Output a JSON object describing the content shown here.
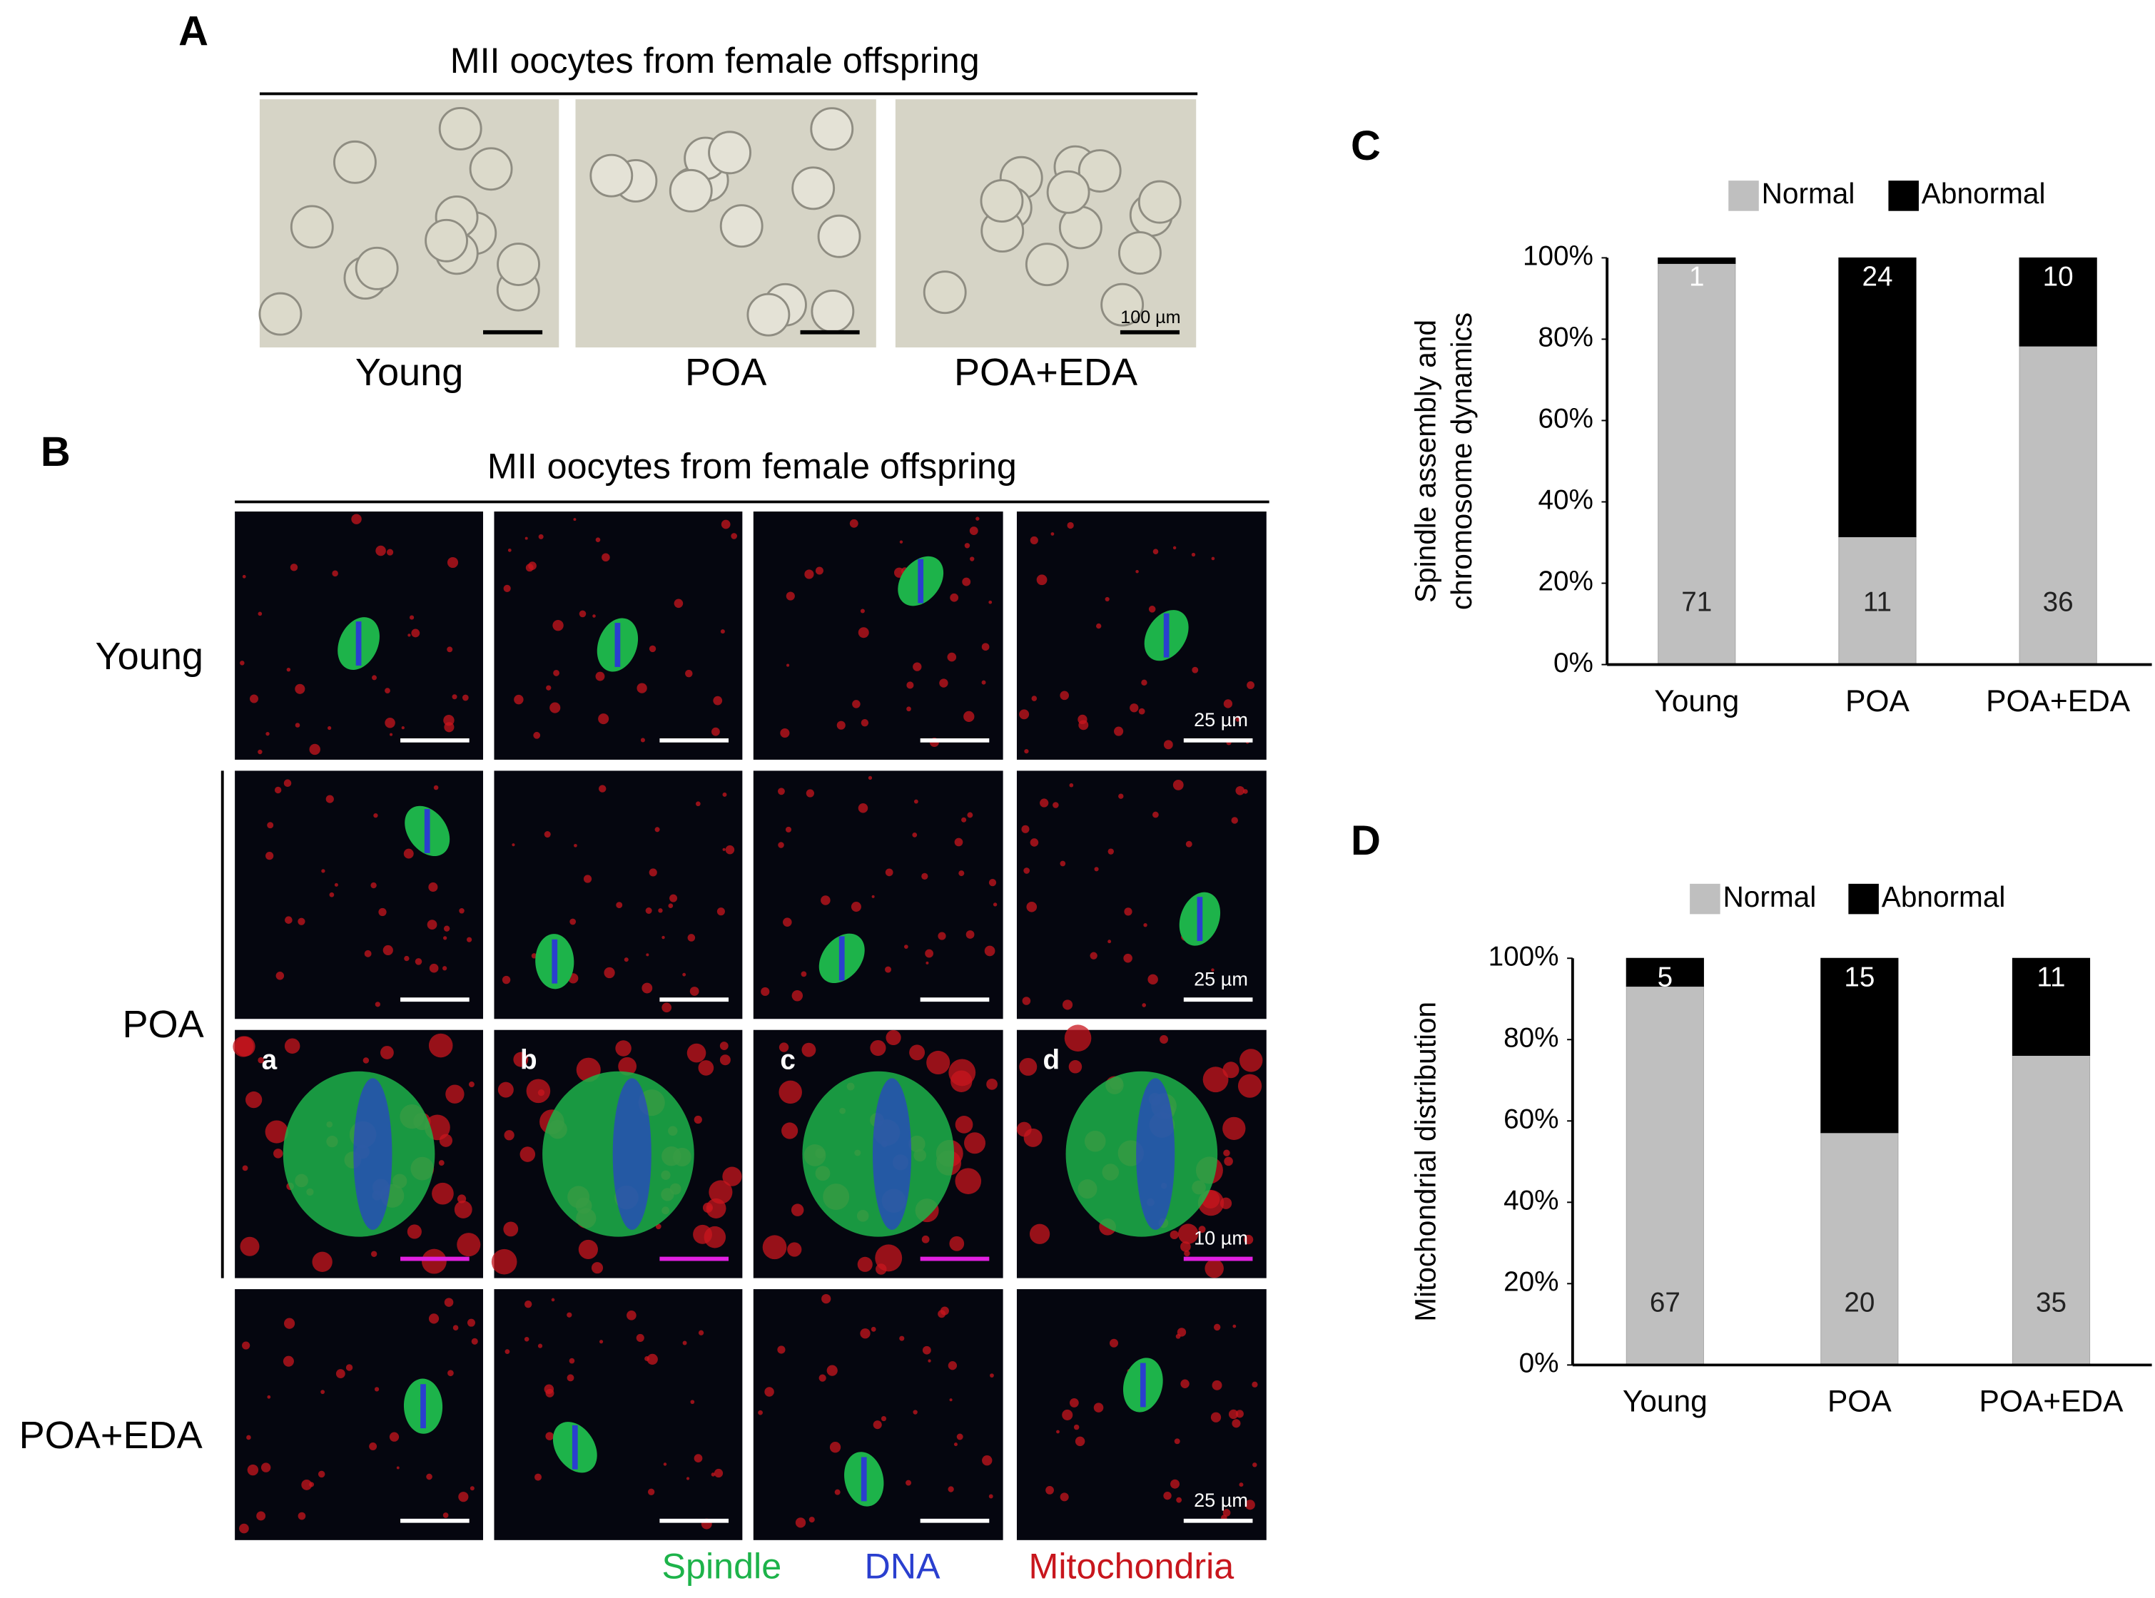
{
  "panel_a": {
    "label": "A",
    "title": "MII oocytes from female offspring",
    "groups": [
      "Young",
      "POA",
      "POA+EDA"
    ],
    "scale_bar": "100 µm"
  },
  "panel_b": {
    "label": "B",
    "title": "MII oocytes from female offspring",
    "rows": [
      "Young",
      "POA",
      "POA+EDA"
    ],
    "insets": [
      "a",
      "b",
      "c",
      "d"
    ],
    "scale_bars": [
      "25 µm",
      "25 µm",
      "10 µm",
      "25 µm"
    ],
    "stains": [
      {
        "name": "Spindle",
        "color": "#1db34a"
      },
      {
        "name": "DNA",
        "color": "#2a3fcf"
      },
      {
        "name": "Mitochondria",
        "color": "#c8161d"
      }
    ]
  },
  "chart_data": [
    {
      "type": "bar",
      "stacked": true,
      "label": "C",
      "ylabel": [
        "Spindle assembly and",
        "chromosome dynamics"
      ],
      "categories": [
        "Young",
        "POA",
        "POA+EDA"
      ],
      "series": [
        {
          "name": "Normal",
          "color": "#bfbfbf",
          "values": [
            98.6,
            31.4,
            78.3
          ],
          "counts": [
            71,
            11,
            36
          ]
        },
        {
          "name": "Abnormal",
          "color": "#000000",
          "values": [
            1.4,
            68.6,
            21.7
          ],
          "counts": [
            1,
            24,
            10
          ]
        }
      ],
      "ylim": [
        0,
        100
      ],
      "yticks": [
        {
          "value": 0,
          "label": "0%"
        },
        {
          "value": 20,
          "label": "20%"
        },
        {
          "value": 40,
          "label": "40%"
        },
        {
          "value": 60,
          "label": "60%"
        },
        {
          "value": 80,
          "label": "80%"
        },
        {
          "value": 100,
          "label": "100%"
        }
      ],
      "legend": "top"
    },
    {
      "type": "bar",
      "stacked": true,
      "label": "D",
      "ylabel": "Mitochondrial distribution",
      "categories": [
        "Young",
        "POA",
        "POA+EDA"
      ],
      "series": [
        {
          "name": "Normal",
          "color": "#bfbfbf",
          "values": [
            93.1,
            57.1,
            76.1
          ],
          "counts": [
            67,
            20,
            35
          ]
        },
        {
          "name": "Abnormal",
          "color": "#000000",
          "values": [
            6.9,
            42.9,
            23.9
          ],
          "counts": [
            5,
            15,
            11
          ]
        }
      ],
      "ylim": [
        0,
        100
      ],
      "yticks": [
        {
          "value": 0,
          "label": "0%"
        },
        {
          "value": 20,
          "label": "20%"
        },
        {
          "value": 40,
          "label": "40%"
        },
        {
          "value": 60,
          "label": "60%"
        },
        {
          "value": 80,
          "label": "80%"
        },
        {
          "value": 100,
          "label": "100%"
        }
      ],
      "legend": "top"
    }
  ]
}
